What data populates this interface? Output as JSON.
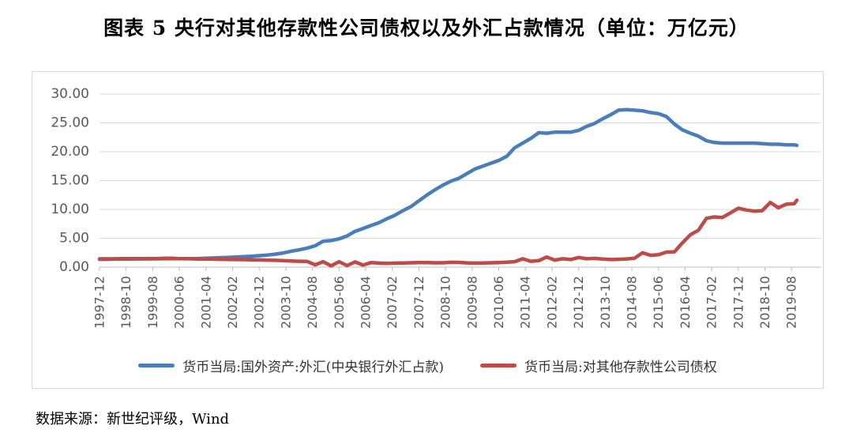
{
  "title": "图表 5  央行对其他存款性公司债权以及外汇占款情况（单位：万亿元）",
  "source": "数据来源：新世纪评级，Wind",
  "colors": {
    "fx_line": "#4A7EBB",
    "claims_line": "#BE4B48",
    "grid": "#D9D9D9",
    "axis": "#BFBFBF",
    "tick_label": "#595959"
  },
  "chart_data": {
    "type": "line",
    "title": "央行对其他存款性公司债权以及外汇占款情况",
    "unit": "万亿元",
    "grid": "horizontal",
    "legend_position": "bottom",
    "ylim": [
      0,
      30
    ],
    "y_tick_interval": 5,
    "y_ticks": [
      "30.00",
      "25.00",
      "20.00",
      "15.00",
      "10.00",
      "5.00",
      "0.00"
    ],
    "x_tick_labels": [
      "1997-12",
      "1998-10",
      "1999-08",
      "2000-06",
      "2001-04",
      "2002-02",
      "2002-12",
      "2003-10",
      "2004-08",
      "2005-06",
      "2006-04",
      "2007-02",
      "2007-12",
      "2008-10",
      "2009-08",
      "2010-06",
      "2011-04",
      "2012-02",
      "2012-12",
      "2013-10",
      "2014-08",
      "2015-06",
      "2016-04",
      "2017-02",
      "2017-12",
      "2018-10",
      "2019-08"
    ],
    "x": [
      "1997-12",
      "1998-03",
      "1998-06",
      "1998-09",
      "1998-12",
      "1999-03",
      "1999-06",
      "1999-09",
      "1999-12",
      "2000-03",
      "2000-06",
      "2000-09",
      "2000-12",
      "2001-03",
      "2001-06",
      "2001-09",
      "2001-12",
      "2002-03",
      "2002-06",
      "2002-09",
      "2002-12",
      "2003-03",
      "2003-06",
      "2003-09",
      "2003-12",
      "2004-03",
      "2004-06",
      "2004-09",
      "2004-12",
      "2005-03",
      "2005-06",
      "2005-09",
      "2005-12",
      "2006-03",
      "2006-06",
      "2006-09",
      "2006-12",
      "2007-03",
      "2007-06",
      "2007-09",
      "2007-12",
      "2008-03",
      "2008-06",
      "2008-09",
      "2008-12",
      "2009-03",
      "2009-06",
      "2009-09",
      "2009-12",
      "2010-03",
      "2010-06",
      "2010-09",
      "2010-12",
      "2011-03",
      "2011-06",
      "2011-09",
      "2011-12",
      "2012-03",
      "2012-06",
      "2012-09",
      "2012-12",
      "2013-03",
      "2013-06",
      "2013-09",
      "2013-12",
      "2014-03",
      "2014-06",
      "2014-09",
      "2014-12",
      "2015-03",
      "2015-06",
      "2015-09",
      "2015-12",
      "2016-03",
      "2016-06",
      "2016-09",
      "2016-12",
      "2017-03",
      "2017-06",
      "2017-09",
      "2017-12",
      "2018-03",
      "2018-06",
      "2018-09",
      "2018-12",
      "2019-03",
      "2019-06",
      "2019-09",
      "2019-10"
    ],
    "series": [
      {
        "name": "货币当局:国外资产:外汇(中央银行外汇占款)",
        "color": "#4A7EBB",
        "values": [
          1.34,
          1.36,
          1.38,
          1.4,
          1.41,
          1.42,
          1.43,
          1.44,
          1.45,
          1.45,
          1.46,
          1.47,
          1.48,
          1.52,
          1.57,
          1.63,
          1.69,
          1.75,
          1.81,
          1.89,
          1.98,
          2.1,
          2.25,
          2.45,
          2.76,
          3.0,
          3.3,
          3.7,
          4.5,
          4.6,
          4.9,
          5.4,
          6.2,
          6.7,
          7.2,
          7.7,
          8.4,
          9.0,
          9.8,
          10.5,
          11.5,
          12.5,
          13.4,
          14.2,
          14.9,
          15.4,
          16.2,
          17.0,
          17.5,
          18.0,
          18.5,
          19.2,
          20.7,
          21.5,
          22.3,
          23.3,
          23.2,
          23.4,
          23.4,
          23.4,
          23.7,
          24.4,
          24.9,
          25.7,
          26.4,
          27.2,
          27.3,
          27.2,
          27.1,
          26.8,
          26.6,
          26.1,
          24.8,
          23.8,
          23.2,
          22.7,
          21.9,
          21.6,
          21.5,
          21.5,
          21.5,
          21.5,
          21.5,
          21.4,
          21.3,
          21.3,
          21.2,
          21.2,
          21.1
        ]
      },
      {
        "name": "货币当局:对其他存款性公司债权",
        "color": "#BE4B48",
        "values": [
          1.44,
          1.44,
          1.45,
          1.46,
          1.47,
          1.48,
          1.5,
          1.46,
          1.52,
          1.55,
          1.48,
          1.45,
          1.43,
          1.4,
          1.38,
          1.36,
          1.34,
          1.32,
          1.3,
          1.27,
          1.25,
          1.22,
          1.18,
          1.12,
          1.06,
          1.02,
          0.98,
          0.4,
          0.95,
          0.22,
          0.95,
          0.28,
          0.9,
          0.35,
          0.78,
          0.7,
          0.66,
          0.7,
          0.73,
          0.76,
          0.79,
          0.78,
          0.76,
          0.75,
          0.84,
          0.82,
          0.74,
          0.7,
          0.72,
          0.76,
          0.8,
          0.86,
          0.95,
          1.45,
          1.02,
          1.12,
          1.75,
          1.22,
          1.45,
          1.32,
          1.67,
          1.45,
          1.52,
          1.4,
          1.31,
          1.36,
          1.42,
          1.55,
          2.5,
          2.05,
          2.15,
          2.6,
          2.66,
          4.2,
          5.6,
          6.4,
          8.47,
          8.7,
          8.6,
          9.4,
          10.2,
          9.9,
          9.7,
          9.8,
          11.2,
          10.3,
          10.9,
          11.0,
          11.6
        ]
      }
    ]
  }
}
